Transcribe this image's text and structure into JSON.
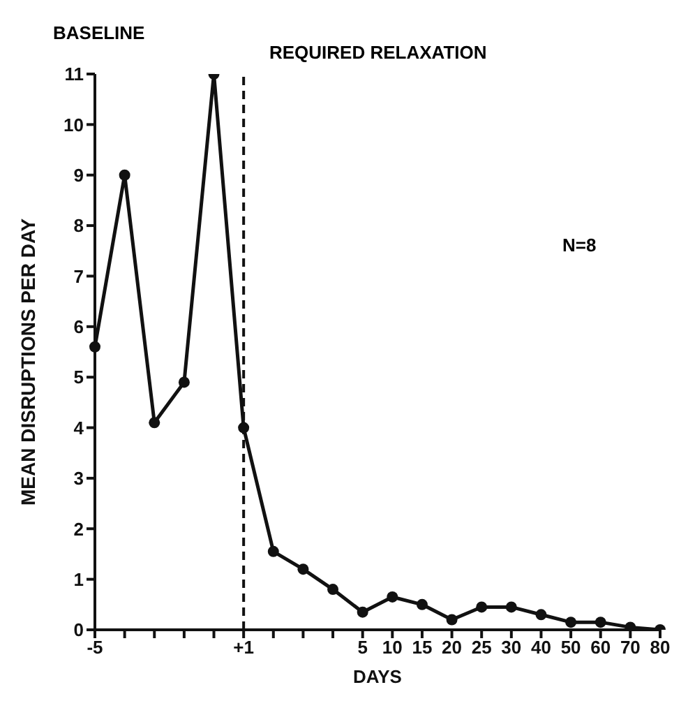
{
  "chart_data": {
    "type": "line",
    "xlabel": "DAYS",
    "ylabel": "MEAN  DISRUPTIONS  PER DAY",
    "categories": [
      "-5",
      null,
      null,
      null,
      null,
      "+1",
      null,
      null,
      null,
      "5",
      "10",
      "15",
      "20",
      "25",
      "30",
      "40",
      "50",
      "60",
      "70",
      "80"
    ],
    "series": [
      {
        "color": "#111111",
        "values": [
          5.6,
          9.0,
          4.1,
          4.9,
          11.0,
          4.0,
          1.55,
          1.2,
          0.8,
          0.35,
          0.65,
          0.5,
          0.2,
          0.45,
          0.45,
          0.3,
          0.15,
          0.15,
          0.05,
          0
        ]
      }
    ],
    "ylim": [
      0,
      11
    ],
    "yticks": [
      0,
      1,
      2,
      3,
      4,
      5,
      6,
      7,
      8,
      9,
      10,
      11
    ],
    "ref_lines": [
      {
        "axis": "x",
        "value": "+1",
        "line_style": "dashed",
        "color": "#111111"
      }
    ],
    "annotations": [
      "BASELINE",
      "REQUIRED RELAXATION",
      "N=8"
    ],
    "grid": false,
    "legend": false,
    "marker": "circle",
    "line_style": "solid"
  }
}
